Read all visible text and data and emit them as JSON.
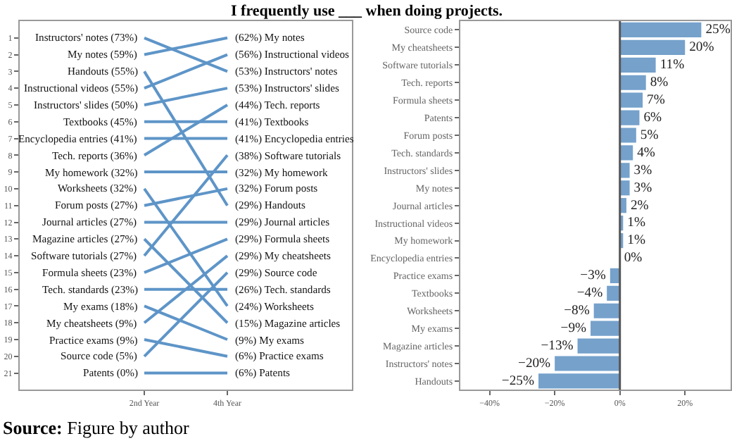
{
  "chart_data": [
    {
      "type": "line",
      "title": "I frequently use ___ when doing projects.",
      "categories": [
        null,
        "2nd Year",
        "4th Year",
        null
      ],
      "ylim": [
        22,
        0
      ],
      "yticks": [
        1,
        2,
        3,
        4,
        5,
        6,
        7,
        8,
        9,
        10,
        11,
        12,
        13,
        14,
        15,
        16,
        17,
        18,
        19,
        20,
        21
      ],
      "marker": "none",
      "line_style": "solid",
      "series": [
        {
          "color": "#5e95c8",
          "values": [
            null,
            1,
            3,
            null
          ]
        },
        {
          "color": "#5e95c8",
          "values": [
            null,
            2,
            1,
            null
          ]
        },
        {
          "color": "#5e95c8",
          "values": [
            null,
            3,
            11,
            null
          ]
        },
        {
          "color": "#5e95c8",
          "values": [
            null,
            4,
            2,
            null
          ]
        },
        {
          "color": "#5e95c8",
          "values": [
            null,
            5,
            4,
            null
          ]
        },
        {
          "color": "#5e95c8",
          "values": [
            null,
            6,
            6,
            null
          ]
        },
        {
          "color": "#5e95c8",
          "values": [
            null,
            7,
            7,
            null
          ]
        },
        {
          "color": "#5e95c8",
          "values": [
            null,
            8,
            5,
            null
          ]
        },
        {
          "color": "#5e95c8",
          "values": [
            null,
            9,
            9,
            null
          ]
        },
        {
          "color": "#5e95c8",
          "values": [
            null,
            10,
            17,
            null
          ]
        },
        {
          "color": "#5e95c8",
          "values": [
            null,
            11,
            10,
            null
          ]
        },
        {
          "color": "#5e95c8",
          "values": [
            null,
            12,
            12,
            null
          ]
        },
        {
          "color": "#5e95c8",
          "values": [
            null,
            13,
            18,
            null
          ]
        },
        {
          "color": "#5e95c8",
          "values": [
            null,
            14,
            8,
            null
          ]
        },
        {
          "color": "#5e95c8",
          "values": [
            null,
            15,
            13,
            null
          ]
        },
        {
          "color": "#5e95c8",
          "values": [
            null,
            16,
            16,
            null
          ]
        },
        {
          "color": "#5e95c8",
          "values": [
            null,
            17,
            19,
            null
          ]
        },
        {
          "color": "#5e95c8",
          "values": [
            null,
            18,
            14,
            null
          ]
        },
        {
          "color": "#5e95c8",
          "values": [
            null,
            19,
            20,
            null
          ]
        },
        {
          "color": "#5e95c8",
          "values": [
            null,
            20,
            15,
            null
          ]
        },
        {
          "color": "#5e95c8",
          "values": [
            null,
            21,
            21,
            null
          ]
        }
      ],
      "annotations": [
        {
          "text": "Instructors' notes (73%)",
          "x": "2nd Year",
          "y": 1
        },
        {
          "text": "My notes (59%)",
          "x": "2nd Year",
          "y": 2
        },
        {
          "text": "Handouts (55%)",
          "x": "2nd Year",
          "y": 3
        },
        {
          "text": "Instructional videos (55%)",
          "x": "2nd Year",
          "y": 4
        },
        {
          "text": "Instructors' slides (50%)",
          "x": "2nd Year",
          "y": 5
        },
        {
          "text": "Textbooks (45%)",
          "x": "2nd Year",
          "y": 6
        },
        {
          "text": "Encyclopedia entries (41%)",
          "x": "2nd Year",
          "y": 7
        },
        {
          "text": "Tech. reports (36%)",
          "x": "2nd Year",
          "y": 8
        },
        {
          "text": "My homework (32%)",
          "x": "2nd Year",
          "y": 9
        },
        {
          "text": "Worksheets (32%)",
          "x": "2nd Year",
          "y": 10
        },
        {
          "text": "Forum posts (27%)",
          "x": "2nd Year",
          "y": 11
        },
        {
          "text": "Journal articles (27%)",
          "x": "2nd Year",
          "y": 12
        },
        {
          "text": "Magazine articles (27%)",
          "x": "2nd Year",
          "y": 13
        },
        {
          "text": "Software tutorials (27%)",
          "x": "2nd Year",
          "y": 14
        },
        {
          "text": "Formula sheets (23%)",
          "x": "2nd Year",
          "y": 15
        },
        {
          "text": "Tech. standards (23%)",
          "x": "2nd Year",
          "y": 16
        },
        {
          "text": "My exams (18%)",
          "x": "2nd Year",
          "y": 17
        },
        {
          "text": "My cheatsheets (9%)",
          "x": "2nd Year",
          "y": 18
        },
        {
          "text": "Practice exams (9%)",
          "x": "2nd Year",
          "y": 19
        },
        {
          "text": "Source code (5%)",
          "x": "2nd Year",
          "y": 20
        },
        {
          "text": "Patents (0%)",
          "x": "2nd Year",
          "y": 21
        },
        {
          "text": "(62%) My notes",
          "x": "4th Year",
          "y": 1
        },
        {
          "text": "(56%) Instructional videos",
          "x": "4th Year",
          "y": 2
        },
        {
          "text": "(53%) Instructors' notes",
          "x": "4th Year",
          "y": 3
        },
        {
          "text": "(53%) Instructors' slides",
          "x": "4th Year",
          "y": 4
        },
        {
          "text": "(44%) Tech. reports",
          "x": "4th Year",
          "y": 5
        },
        {
          "text": "(41%) Textbooks",
          "x": "4th Year",
          "y": 6
        },
        {
          "text": "(41%) Encyclopedia entries",
          "x": "4th Year",
          "y": 7
        },
        {
          "text": "(38%) Software tutorials",
          "x": "4th Year",
          "y": 8
        },
        {
          "text": "(32%) My homework",
          "x": "4th Year",
          "y": 9
        },
        {
          "text": "(32%) Forum posts",
          "x": "4th Year",
          "y": 10
        },
        {
          "text": "(29%) Handouts",
          "x": "4th Year",
          "y": 11
        },
        {
          "text": "(29%) Journal articles",
          "x": "4th Year",
          "y": 12
        },
        {
          "text": "(29%) Formula sheets",
          "x": "4th Year",
          "y": 13
        },
        {
          "text": "(29%) My cheatsheets",
          "x": "4th Year",
          "y": 14
        },
        {
          "text": "(29%) Source code",
          "x": "4th Year",
          "y": 15
        },
        {
          "text": "(26%) Tech. standards",
          "x": "4th Year",
          "y": 16
        },
        {
          "text": "(24%) Worksheets",
          "x": "4th Year",
          "y": 17
        },
        {
          "text": "(15%) Magazine articles",
          "x": "4th Year",
          "y": 18
        },
        {
          "text": "(9%) My exams",
          "x": "4th Year",
          "y": 19
        },
        {
          "text": "(6%) Practice exams",
          "x": "4th Year",
          "y": 20
        },
        {
          "text": "(6%) Patents",
          "x": "4th Year",
          "y": 21
        },
        "Source: Figure by author"
      ]
    },
    {
      "type": "bar",
      "orientation": "horizontal",
      "color": "#75a1cb",
      "categories": [
        "Source code",
        "My cheatsheets",
        "Software tutorials",
        "Tech. reports",
        "Formula sheets",
        "Patents",
        "Forum posts",
        "Tech. standards",
        "Instructors' slides",
        "My notes",
        "Journal articles",
        "Instructional videos",
        "My homework",
        "Encyclopedia entries",
        "Practice exams",
        "Textbooks",
        "Worksheets",
        "My exams",
        "Magazine articles",
        "Instructors' notes",
        "Handouts"
      ],
      "values": [
        25,
        20,
        11,
        8,
        7,
        6,
        5,
        4,
        3,
        3,
        2,
        1,
        1,
        0,
        -3,
        -4,
        -8,
        -9,
        -13,
        -20,
        -25
      ],
      "value_labels": [
        "25%",
        "20%",
        "11%",
        "8%",
        "7%",
        "6%",
        "5%",
        "4%",
        "3%",
        "3%",
        "2%",
        "1%",
        "1%",
        "0%",
        "−3%",
        "−4%",
        "−8%",
        "−9%",
        "−13%",
        "−20%",
        "−25%"
      ],
      "xlim": [
        -49,
        34
      ],
      "xticks": [
        {
          "value": -40,
          "label": "−40%"
        },
        {
          "value": -20,
          "label": "−20%"
        },
        {
          "value": 0,
          "label": "0%"
        },
        {
          "value": 20,
          "label": "20%"
        }
      ],
      "ref_lines": [
        {
          "axis": "x",
          "value": 0,
          "color": "#555555",
          "line_style": "solid"
        }
      ]
    }
  ]
}
